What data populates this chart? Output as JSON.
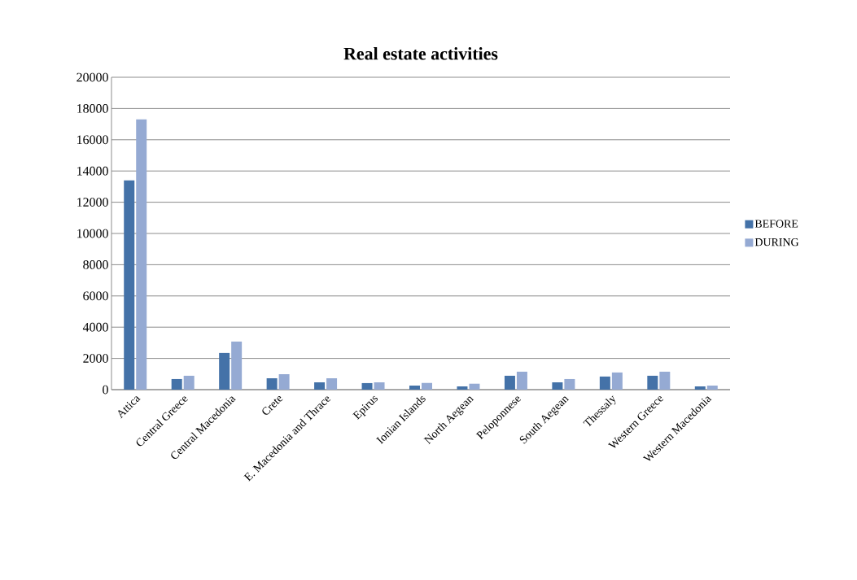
{
  "chart_data": {
    "type": "bar",
    "title": "Real estate activities",
    "categories": [
      "Attica",
      "Central Greece",
      "Central Macedonia",
      "Crete",
      "E. Macedonia and Thrace",
      "Epirus",
      "Ionian Islands",
      "North Aegean",
      "Peloponnese",
      "South Aegean",
      "Thessaly",
      "Western Greece",
      "Western Macedonia"
    ],
    "series": [
      {
        "name": "BEFORE",
        "color": "#4472a8",
        "values": [
          13400,
          680,
          2350,
          730,
          470,
          420,
          260,
          210,
          890,
          470,
          840,
          890,
          210
        ]
      },
      {
        "name": "DURING",
        "color": "#95aad3",
        "values": [
          17300,
          890,
          3080,
          990,
          730,
          470,
          430,
          380,
          1150,
          680,
          1100,
          1150,
          260
        ]
      }
    ],
    "ylim": [
      0,
      20000
    ],
    "yticks": [
      0,
      2000,
      4000,
      6000,
      8000,
      10000,
      12000,
      14000,
      16000,
      18000,
      20000
    ],
    "grid": "y",
    "legend": "right"
  }
}
